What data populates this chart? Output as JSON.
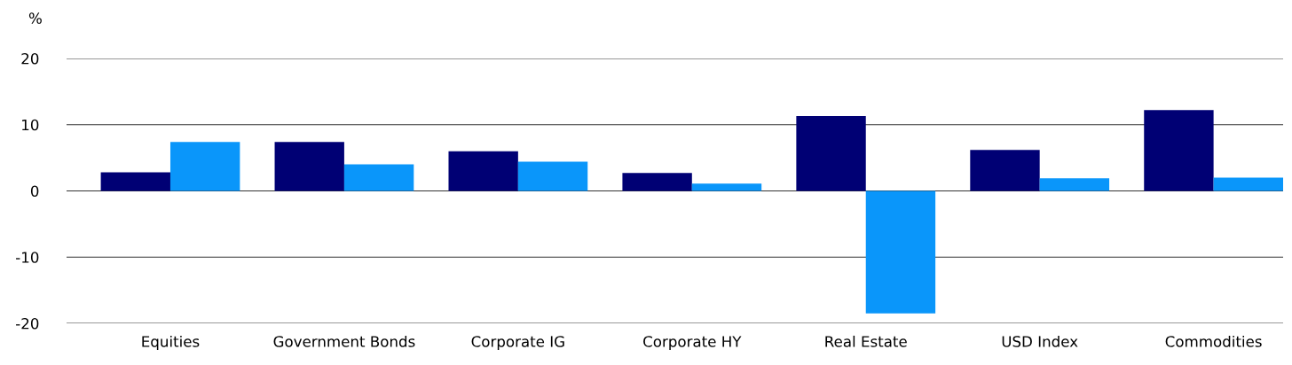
{
  "chart_data": {
    "type": "bar",
    "ylabel": "%",
    "categories": [
      "Equities",
      "Government Bonds",
      "Corporate IG",
      "Corporate HY",
      "Real Estate",
      "USD Index",
      "Commodities"
    ],
    "series": [
      {
        "color": "#000074",
        "values": [
          2.8,
          7.4,
          6.0,
          2.7,
          11.3,
          6.2,
          12.2
        ]
      },
      {
        "color": "#0a96fa",
        "values": [
          7.4,
          4.0,
          4.4,
          1.1,
          -18.5,
          1.9,
          2.0
        ]
      }
    ],
    "ylim": [
      -20,
      20
    ],
    "yticks": [
      {
        "value": -20,
        "label": "-20"
      },
      {
        "value": -10,
        "label": "-10"
      },
      0,
      10,
      20
    ],
    "grid": "y"
  }
}
